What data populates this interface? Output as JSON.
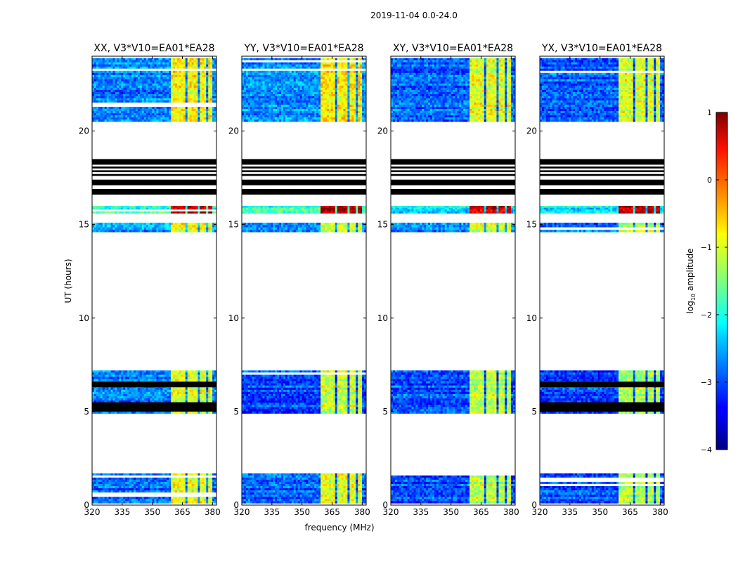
{
  "chart_data": {
    "type": "heatmap",
    "suptitle": "2019-11-04 0.0-24.0",
    "xlabel": "frequency (MHz)",
    "ylabel": "UT (hours)",
    "xlim": [
      320,
      382
    ],
    "ylim": [
      0,
      24
    ],
    "x_ticks": [
      320,
      335,
      350,
      365,
      380
    ],
    "y_ticks": [
      0,
      5,
      10,
      15,
      20
    ],
    "colorbar": {
      "label": "log10 amplitude",
      "label_main": "log",
      "label_sub": "10",
      "label_rest": " amplitude",
      "range": [
        -4,
        1
      ],
      "ticks": [
        1,
        0,
        -1,
        -2,
        -3,
        -4
      ],
      "colormap": "jet"
    },
    "bright_band_mhz": [
      359,
      380
    ],
    "bright_band_gaps_mhz": [
      [
        366.5,
        367.5
      ],
      [
        372.5,
        373.5
      ],
      [
        377,
        378
      ]
    ],
    "panels": [
      {
        "title": "XX, V3*V10=EA01*EA28",
        "segments": [
          {
            "t0": 0.1,
            "t1": 1.7,
            "base": -2.9,
            "band": -1.0
          },
          {
            "t0": 4.9,
            "t1": 7.2,
            "base": -2.8,
            "band": -1.1
          },
          {
            "t0": 14.6,
            "t1": 15.1,
            "base": -2.6,
            "band": -1.0
          },
          {
            "t0": 15.6,
            "t1": 16.0,
            "base": -1.9,
            "band": 0.7
          },
          {
            "t0": 20.5,
            "t1": 23.9,
            "base": -2.8,
            "band": -0.9
          }
        ],
        "flag_bars": [
          [
            5.0,
            5.5
          ],
          [
            6.3,
            6.6
          ],
          [
            16.6,
            16.9
          ],
          [
            17.1,
            17.4
          ],
          [
            17.6,
            17.7
          ],
          [
            17.8,
            17.9
          ],
          [
            18.0,
            18.1
          ],
          [
            18.2,
            18.5
          ]
        ]
      },
      {
        "title": "YY, V3*V10=EA01*EA28",
        "segments": [
          {
            "t0": 0.1,
            "t1": 1.7,
            "base": -2.9,
            "band": -1.0
          },
          {
            "t0": 4.9,
            "t1": 7.2,
            "base": -3.0,
            "band": -1.1
          },
          {
            "t0": 14.6,
            "t1": 15.1,
            "base": -2.6,
            "band": -1.0
          },
          {
            "t0": 15.6,
            "t1": 16.0,
            "base": -1.9,
            "band": 0.7
          },
          {
            "t0": 20.5,
            "t1": 23.9,
            "base": -2.7,
            "band": -0.8
          }
        ],
        "flag_bars": [
          [
            16.6,
            16.9
          ],
          [
            17.1,
            17.4
          ],
          [
            17.6,
            17.7
          ],
          [
            17.8,
            17.9
          ],
          [
            18.0,
            18.1
          ],
          [
            18.2,
            18.5
          ]
        ]
      },
      {
        "title": "XY, V3*V10=EA01*EA28",
        "segments": [
          {
            "t0": 0.1,
            "t1": 1.7,
            "base": -3.0,
            "band": -1.2
          },
          {
            "t0": 4.9,
            "t1": 7.2,
            "base": -3.0,
            "band": -1.2
          },
          {
            "t0": 14.6,
            "t1": 15.1,
            "base": -2.8,
            "band": -1.2
          },
          {
            "t0": 15.6,
            "t1": 16.0,
            "base": -2.2,
            "band": 0.7
          },
          {
            "t0": 20.5,
            "t1": 23.9,
            "base": -2.9,
            "band": -1.0
          }
        ],
        "flag_bars": [
          [
            16.6,
            16.9
          ],
          [
            17.1,
            17.4
          ],
          [
            17.6,
            17.7
          ],
          [
            17.8,
            17.9
          ],
          [
            18.0,
            18.1
          ],
          [
            18.2,
            18.5
          ]
        ]
      },
      {
        "title": "YX, V3*V10=EA01*EA28",
        "segments": [
          {
            "t0": 0.1,
            "t1": 1.7,
            "base": -3.0,
            "band": -1.3
          },
          {
            "t0": 4.9,
            "t1": 7.2,
            "base": -3.0,
            "band": -1.2
          },
          {
            "t0": 14.6,
            "t1": 15.1,
            "base": -2.8,
            "band": -1.2
          },
          {
            "t0": 15.6,
            "t1": 16.0,
            "base": -2.2,
            "band": 0.7
          },
          {
            "t0": 20.5,
            "t1": 23.9,
            "base": -2.9,
            "band": -1.0
          }
        ],
        "flag_bars": [
          [
            5.0,
            5.5
          ],
          [
            6.3,
            6.6
          ],
          [
            16.6,
            16.9
          ],
          [
            17.1,
            17.4
          ],
          [
            17.6,
            17.7
          ],
          [
            17.8,
            17.9
          ],
          [
            18.0,
            18.1
          ],
          [
            18.2,
            18.5
          ]
        ]
      }
    ]
  }
}
